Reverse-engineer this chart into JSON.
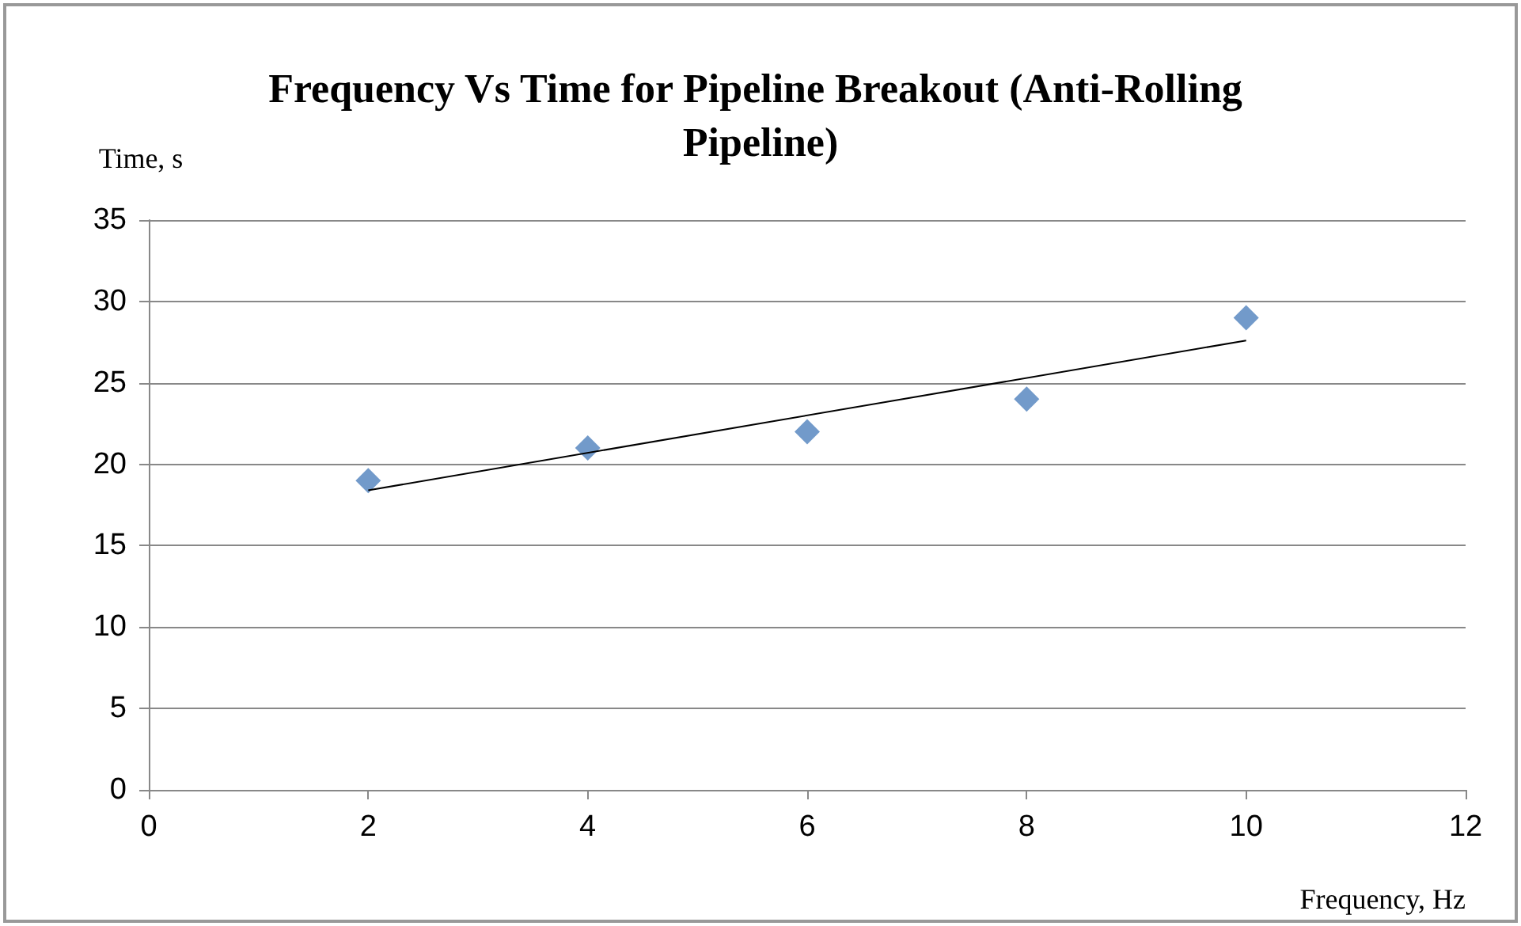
{
  "chart_data": {
    "type": "scatter",
    "title": "Frequency Vs Time for Pipeline Breakout (Anti-Rolling Pipeline)",
    "xlabel": "Frequency, Hz",
    "ylabel": "Time, s",
    "x": [
      2,
      4,
      6,
      8,
      10
    ],
    "series": [
      {
        "color": "#4f81bd",
        "values": [
          19,
          21,
          22,
          24,
          29
        ]
      },
      {
        "type": "line",
        "color": "#000000",
        "marker": "none",
        "x": [
          2,
          10
        ],
        "values": [
          18.4,
          27.6
        ]
      }
    ],
    "xlim": [
      0,
      12
    ],
    "xticks": [
      0,
      2,
      4,
      6,
      8,
      10,
      12
    ],
    "ylim": [
      0,
      35
    ],
    "yticks": [
      0,
      5,
      10,
      15,
      20,
      25,
      30,
      35
    ],
    "grid": "y",
    "marker": "diamond"
  }
}
